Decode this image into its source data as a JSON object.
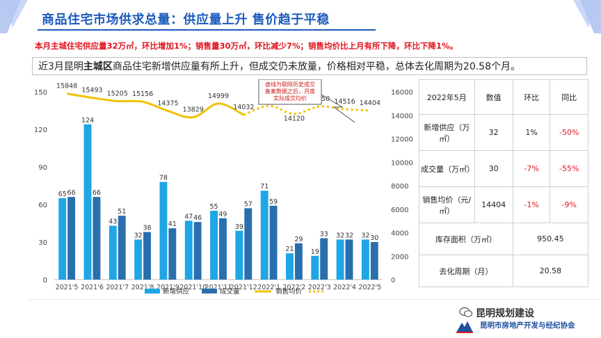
{
  "header": {
    "title": "商品住宅市场供求总量：供应量上升 售价趋于平稳",
    "summary": "本月主城住宅供应量32万㎡，环比增加1%；销售量30万㎡，环比减少7%；销售均价比上月有所下降，环比下降1%。",
    "intro_before": "近3月昆明",
    "intro_bold": "主城区",
    "intro_after": "商品住宅新增供应量有所上升，但成交仍未放量，价格相对平稳，总体去化周期为20.58个月。"
  },
  "chart_data": {
    "type": "bar",
    "categories": [
      "2021'5",
      "2021'6",
      "2021'7",
      "2021'8",
      "2021'9",
      "2021'10",
      "2021'11",
      "2021'12",
      "2022'1",
      "2022'2",
      "2022'3",
      "2022'4",
      "2022'5"
    ],
    "series": [
      {
        "name": "新增供应",
        "type": "bar",
        "values": [
          65,
          124,
          43,
          32,
          78,
          47,
          55,
          39,
          71,
          21,
          19,
          32,
          32
        ],
        "color": "#1ea6e6"
      },
      {
        "name": "成交量",
        "type": "bar",
        "values": [
          66,
          66,
          51,
          38,
          41,
          46,
          49,
          57,
          59,
          29,
          33,
          32,
          30
        ],
        "color": "#2a6fad"
      },
      {
        "name": "销售均价",
        "type": "line",
        "axis": "right",
        "values": [
          15848,
          15493,
          15205,
          15156,
          14375,
          13829,
          14999,
          14032,
          14806,
          14120,
          14750,
          14516,
          14404
        ],
        "color": "#f2c100"
      }
    ],
    "y_left": {
      "ticks": [
        0,
        30,
        60,
        90,
        120,
        150
      ],
      "range": [
        0,
        150
      ]
    },
    "y_right": {
      "ticks": [
        0,
        2000,
        4000,
        6000,
        8000,
        10000,
        12000,
        14000,
        16000
      ],
      "range": [
        0,
        16000
      ]
    },
    "annotation": "虚线为剔除历史成交备案数据之后，月度实际成交均价",
    "legend_position": "bottom"
  },
  "table": {
    "header": [
      "2022年5月",
      "数值",
      "环比",
      "同比"
    ],
    "rows": [
      {
        "label": "新增供应（万㎡）",
        "value": "32",
        "mom": "1%",
        "yoy": "-50%"
      },
      {
        "label": "成交量（万㎡）",
        "value": "30",
        "mom": "-7%",
        "yoy": "-55%"
      },
      {
        "label": "销售均价（元/㎡）",
        "value": "14404",
        "mom": "-1%",
        "yoy": "-9%"
      }
    ],
    "stock_label": "库存面积（万㎡）",
    "stock_value": "950.45",
    "cycle_label": "去化周期（月）",
    "cycle_value": "20.58"
  },
  "footer": {
    "brand": "昆明规划建设",
    "org": "昆明市房地产开发与经纪协会"
  },
  "colors": {
    "title": "#1c5bbd",
    "summary": "#e0141e",
    "negative": "#e0141e"
  }
}
